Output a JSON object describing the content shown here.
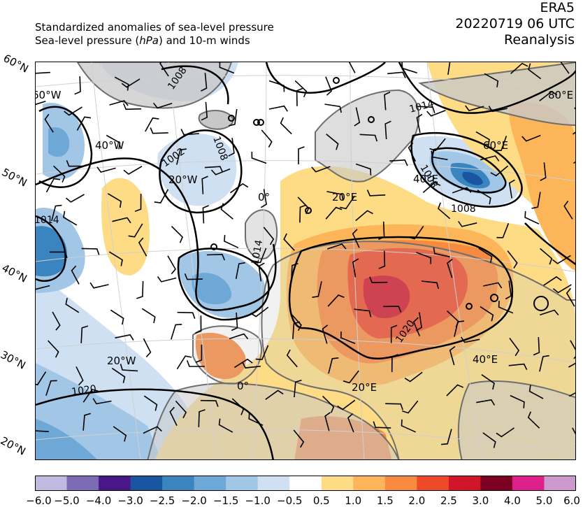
{
  "header": {
    "line1": "Standardized anomalies of sea-level pressure",
    "line2_prefix": "Sea-level pressure (",
    "line2_unit": "hPa",
    "line2_suffix": ") and 10-m winds",
    "dataset": "ERA5",
    "datetime": "20220719 06 UTC",
    "product": "Reanalysis"
  },
  "map": {
    "lat_labels": [
      "60°N",
      "50°N",
      "40°N",
      "30°N",
      "20°N"
    ],
    "lon_labels": [
      "60°W",
      "40°W",
      "20°W",
      "0°",
      "20°E",
      "40°E",
      "60°E",
      "80°E",
      "20°W",
      "0°",
      "20°E",
      "40°E"
    ],
    "isobar_labels": [
      "1008",
      "1002",
      "1008",
      "1014",
      "1014",
      "1008",
      "1014",
      "1020",
      "1020",
      "1008"
    ],
    "colors": {
      "land": "#c8c8c8",
      "coast": "#6e6e6e",
      "contour": "#000000"
    }
  },
  "colorbar": {
    "levels": [
      "−6.0",
      "−5.0",
      "−4.0",
      "−3.0",
      "−2.5",
      "−2.0",
      "−1.5",
      "−1.0",
      "−0.5",
      "0.5",
      "1.0",
      "1.5",
      "2.0",
      "2.5",
      "3.0",
      "4.0",
      "5.0",
      "6.0"
    ],
    "colors": [
      "#c0b9e0",
      "#7b6cb4",
      "#4a1786",
      "#1a56a0",
      "#3a84c0",
      "#6ea8d6",
      "#a2c6e6",
      "#cfe0f3",
      "#ffffff",
      "#fddc85",
      "#fcb659",
      "#f78a3e",
      "#ee4a2a",
      "#d1162a",
      "#7c0024",
      "#e0208a",
      "#cc99cc"
    ]
  }
}
